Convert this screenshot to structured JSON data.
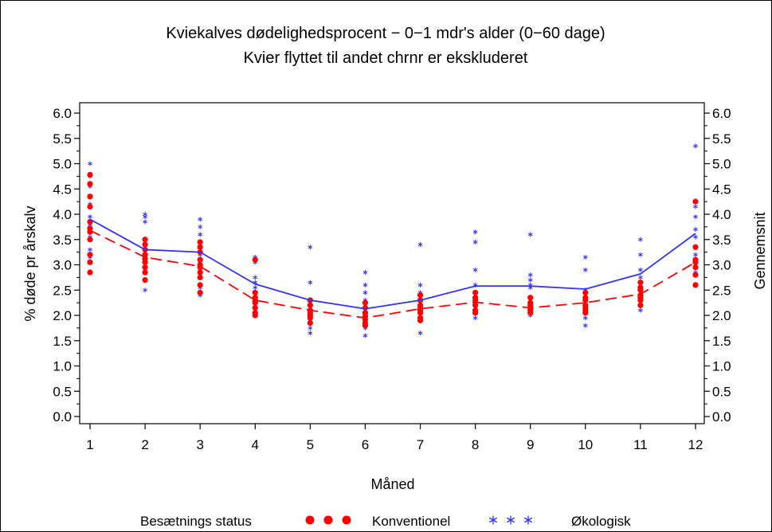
{
  "chart_data": {
    "type": "line",
    "title": "Kviekalves dødelighedsprocent − 0−1 mdr's alder (0−60 dage)",
    "subtitle": "Kvier flyttet til andet chrnr er ekskluderet",
    "xlabel": "Måned",
    "ylabel": "% døde pr årskalv",
    "y2label": "Gennemsnit",
    "x": [
      1,
      2,
      3,
      4,
      5,
      6,
      7,
      8,
      9,
      10,
      11,
      12
    ],
    "x_ticks": [
      "1",
      "2",
      "3",
      "4",
      "5",
      "6",
      "7",
      "8",
      "9",
      "10",
      "11",
      "12"
    ],
    "y_ticks": [
      "0.0",
      "0.5",
      "1.0",
      "1.5",
      "2.0",
      "2.5",
      "3.0",
      "3.5",
      "4.0",
      "4.5",
      "5.0",
      "5.5",
      "6.0"
    ],
    "ylim": [
      0,
      6
    ],
    "grid": false,
    "legend": {
      "position": "bottom",
      "title": "Besætnings status",
      "entries": [
        {
          "label": "Konventionel",
          "marker": "dot",
          "color": "#ff0000"
        },
        {
          "label": "Økologisk",
          "marker": "star",
          "color": "#3333ff"
        }
      ]
    },
    "series": [
      {
        "name": "Konventionel",
        "color": "#ff0000",
        "line_style": "dashed",
        "mean": [
          3.68,
          3.15,
          2.97,
          2.3,
          2.1,
          1.95,
          2.13,
          2.26,
          2.15,
          2.25,
          2.42,
          3.05
        ],
        "points": [
          [
            4.78,
            4.6,
            4.35,
            4.15,
            3.85,
            3.72,
            3.65,
            3.5,
            3.2,
            3.05,
            2.85
          ],
          [
            3.5,
            3.4,
            3.3,
            3.2,
            3.12,
            3.05,
            2.95,
            2.85,
            2.7
          ],
          [
            3.45,
            3.35,
            3.25,
            3.1,
            3.0,
            2.95,
            2.85,
            2.75,
            2.6,
            2.45
          ],
          [
            3.1,
            2.45,
            2.35,
            2.3,
            2.25,
            2.15,
            2.05,
            2.0
          ],
          [
            2.3,
            2.2,
            2.1,
            2.05,
            2.0,
            1.95,
            1.85
          ],
          [
            2.25,
            2.15,
            2.05,
            1.98,
            1.92,
            1.85,
            1.8
          ],
          [
            2.4,
            2.3,
            2.2,
            2.15,
            2.1,
            2.05,
            1.95,
            1.9
          ],
          [
            2.45,
            2.35,
            2.3,
            2.2,
            2.1,
            2.05
          ],
          [
            2.35,
            2.25,
            2.2,
            2.15,
            2.1,
            2.05
          ],
          [
            2.45,
            2.35,
            2.3,
            2.2,
            2.15,
            2.1,
            2.05
          ],
          [
            2.65,
            2.55,
            2.5,
            2.4,
            2.35,
            2.3,
            2.2
          ],
          [
            4.25,
            3.35,
            3.1,
            3.05,
            2.95,
            2.8,
            2.6
          ]
        ]
      },
      {
        "name": "Økologisk",
        "color": "#3333ff",
        "line_style": "solid",
        "mean": [
          3.9,
          3.3,
          3.25,
          2.62,
          2.3,
          2.13,
          2.3,
          2.58,
          2.58,
          2.52,
          2.82,
          3.62
        ],
        "points": [
          [
            5.0,
            4.75,
            4.55,
            4.2,
            3.95,
            3.8,
            3.55,
            3.3,
            3.15
          ],
          [
            4.0,
            3.95,
            3.85,
            3.45,
            3.25,
            3.1,
            2.7,
            2.5
          ],
          [
            3.9,
            3.75,
            3.6,
            3.45,
            3.2,
            3.05,
            2.8,
            2.55,
            2.4
          ],
          [
            3.15,
            3.05,
            2.75,
            2.65,
            2.55,
            2.35,
            2.3,
            2.1
          ],
          [
            3.35,
            2.65,
            2.25,
            2.0,
            1.85,
            1.75,
            1.65
          ],
          [
            2.85,
            2.6,
            2.45,
            2.3,
            2.1,
            1.75,
            1.6
          ],
          [
            3.4,
            2.6,
            2.45,
            2.2,
            2.0,
            1.65
          ],
          [
            3.65,
            3.45,
            2.9,
            2.6,
            2.45,
            2.2,
            1.95
          ],
          [
            3.6,
            2.8,
            2.7,
            2.6,
            2.55,
            2.35,
            2.0
          ],
          [
            3.15,
            2.9,
            2.5,
            2.35,
            2.1,
            1.95,
            1.8
          ],
          [
            3.5,
            3.2,
            2.9,
            2.75,
            2.55,
            2.3,
            2.1
          ],
          [
            5.35,
            4.15,
            3.95,
            3.7,
            3.55,
            3.35,
            3.2,
            2.85
          ]
        ]
      }
    ]
  }
}
